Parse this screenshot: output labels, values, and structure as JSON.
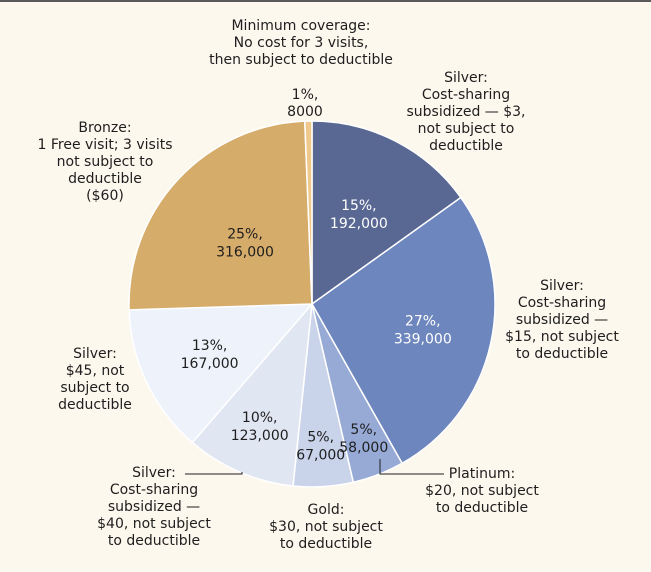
{
  "chart_data": {
    "type": "pie",
    "title": "",
    "slices": [
      {
        "key": "silver-3",
        "percent": 15,
        "count": "192,000",
        "value": 192000,
        "color": "#596893",
        "label_lines": [
          "Silver:",
          "Cost-sharing",
          "subsidized — $3,",
          "not subject to",
          "deductible"
        ]
      },
      {
        "key": "silver-15",
        "percent": 27,
        "count": "339,000",
        "value": 339000,
        "color": "#6d86be",
        "label_lines": [
          "Silver:",
          "Cost-sharing",
          "subsidized —",
          "$15, not subject",
          "to deductible"
        ]
      },
      {
        "key": "platinum",
        "percent": 5,
        "count": "58,000",
        "value": 58000,
        "color": "#97aad6",
        "label_lines": [
          "Platinum:",
          "$20, not subject",
          "to deductible"
        ]
      },
      {
        "key": "gold",
        "percent": 5,
        "count": "67,000",
        "value": 67000,
        "color": "#c9d3ea",
        "label_lines": [
          "Gold:",
          "$30, not subject",
          "to deductible"
        ]
      },
      {
        "key": "silver-40",
        "percent": 10,
        "count": "123,000",
        "value": 123000,
        "color": "#e1e6f3",
        "label_lines": [
          "Silver:",
          "Cost-sharing",
          "subsidized —",
          "$40, not subject",
          "to deductible"
        ]
      },
      {
        "key": "silver-45",
        "percent": 13,
        "count": "167,000",
        "value": 167000,
        "color": "#eef2fa",
        "label_lines": [
          "Silver:",
          "$45, not",
          "subject to",
          "deductible"
        ]
      },
      {
        "key": "bronze",
        "percent": 25,
        "count": "316,000",
        "value": 316000,
        "color": "#d6ac6b",
        "label_lines": [
          "Bronze:",
          "1 Free visit; 3 visits",
          "not subject to",
          "deductible",
          "($60)"
        ]
      },
      {
        "key": "min-coverage",
        "percent": 1,
        "count": "8000",
        "value": 8000,
        "color": "#eec98b",
        "label_lines": [
          "Minimum coverage:",
          "No cost for 3 visits,",
          "then subject to deductible"
        ]
      }
    ]
  }
}
